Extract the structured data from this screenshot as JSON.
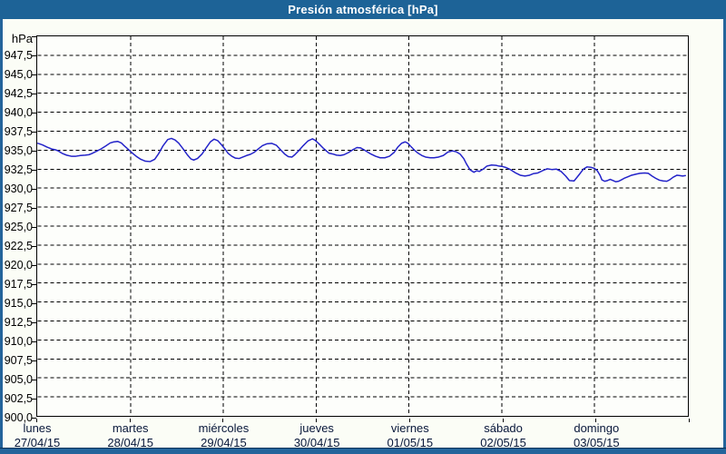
{
  "window": {
    "title": "Presión atmosférica [hPa]"
  },
  "colors": {
    "titlebar_bg": "#1d6397",
    "frame": "#24649b",
    "page_bg": "#fbfdf6",
    "plot_bg": "#fdfefb",
    "plot_border": "#000000",
    "grid": "#000000",
    "line": "#2323c9",
    "x_label_text": "#08173a",
    "y_label_text": "#000000"
  },
  "chart_data": {
    "type": "line",
    "title": "Presión atmosférica [hPa]",
    "unit_label": "hPa",
    "grid": "dashed",
    "legend": "none",
    "y_axis": {
      "min": 900,
      "max": 950,
      "step": 2.5,
      "tick_labels": [
        "947,5",
        "945,0",
        "942,5",
        "940,0",
        "937,5",
        "935,0",
        "932,5",
        "930,0",
        "927,5",
        "925,0",
        "922,5",
        "920,0",
        "917,5",
        "915,0",
        "912,5",
        "910,0",
        "907,5",
        "905,0",
        "902,5",
        "900,0"
      ]
    },
    "x_axis": {
      "days": [
        {
          "name": "lunes",
          "date": "27/04/15"
        },
        {
          "name": "martes",
          "date": "28/04/15"
        },
        {
          "name": "miércoles",
          "date": "29/04/15"
        },
        {
          "name": "jueves",
          "date": "30/04/15"
        },
        {
          "name": "viernes",
          "date": "01/05/15"
        },
        {
          "name": "sábado",
          "date": "02/05/15"
        },
        {
          "name": "domingo",
          "date": "03/05/15"
        }
      ]
    },
    "series": [
      {
        "name": "Presión atmosférica",
        "x_unit": "days_since_monday_00h",
        "y_unit": "hPa",
        "points": [
          [
            0.0,
            935.9
          ],
          [
            0.05,
            935.7
          ],
          [
            0.1,
            935.4
          ],
          [
            0.15,
            935.15
          ],
          [
            0.19,
            935.05
          ],
          [
            0.22,
            934.9
          ],
          [
            0.26,
            934.6
          ],
          [
            0.31,
            934.35
          ],
          [
            0.36,
            934.2
          ],
          [
            0.41,
            934.2
          ],
          [
            0.46,
            934.3
          ],
          [
            0.51,
            934.35
          ],
          [
            0.55,
            934.4
          ],
          [
            0.58,
            934.55
          ],
          [
            0.63,
            934.85
          ],
          [
            0.68,
            935.15
          ],
          [
            0.73,
            935.55
          ],
          [
            0.78,
            935.95
          ],
          [
            0.82,
            936.1
          ],
          [
            0.86,
            936.15
          ],
          [
            0.9,
            935.95
          ],
          [
            0.93,
            935.6
          ],
          [
            0.97,
            935.15
          ],
          [
            1.01,
            934.7
          ],
          [
            1.06,
            934.2
          ],
          [
            1.11,
            933.8
          ],
          [
            1.16,
            933.55
          ],
          [
            1.21,
            933.5
          ],
          [
            1.26,
            933.8
          ],
          [
            1.3,
            934.5
          ],
          [
            1.35,
            935.6
          ],
          [
            1.4,
            936.4
          ],
          [
            1.44,
            936.55
          ],
          [
            1.48,
            936.35
          ],
          [
            1.52,
            935.9
          ],
          [
            1.57,
            935.1
          ],
          [
            1.61,
            934.4
          ],
          [
            1.65,
            933.85
          ],
          [
            1.68,
            933.7
          ],
          [
            1.72,
            933.9
          ],
          [
            1.77,
            934.5
          ],
          [
            1.82,
            935.4
          ],
          [
            1.86,
            936.1
          ],
          [
            1.9,
            936.45
          ],
          [
            1.94,
            936.25
          ],
          [
            1.98,
            935.7
          ],
          [
            2.02,
            935.1
          ],
          [
            2.05,
            934.6
          ],
          [
            2.09,
            934.2
          ],
          [
            2.13,
            933.95
          ],
          [
            2.17,
            933.9
          ],
          [
            2.21,
            934.1
          ],
          [
            2.25,
            934.3
          ],
          [
            2.29,
            934.45
          ],
          [
            2.33,
            934.7
          ],
          [
            2.38,
            935.2
          ],
          [
            2.42,
            935.6
          ],
          [
            2.47,
            935.85
          ],
          [
            2.52,
            935.9
          ],
          [
            2.57,
            935.65
          ],
          [
            2.62,
            935.0
          ],
          [
            2.66,
            934.5
          ],
          [
            2.7,
            934.15
          ],
          [
            2.74,
            934.1
          ],
          [
            2.77,
            934.4
          ],
          [
            2.81,
            934.9
          ],
          [
            2.86,
            935.6
          ],
          [
            2.91,
            936.2
          ],
          [
            2.96,
            936.5
          ],
          [
            2.99,
            936.3
          ],
          [
            3.03,
            935.85
          ],
          [
            3.07,
            935.35
          ],
          [
            3.11,
            934.9
          ],
          [
            3.14,
            934.6
          ],
          [
            3.18,
            934.5
          ],
          [
            3.22,
            934.35
          ],
          [
            3.26,
            934.3
          ],
          [
            3.3,
            934.4
          ],
          [
            3.35,
            934.7
          ],
          [
            3.4,
            935.1
          ],
          [
            3.44,
            935.35
          ],
          [
            3.48,
            935.3
          ],
          [
            3.51,
            935.1
          ],
          [
            3.55,
            934.8
          ],
          [
            3.59,
            934.5
          ],
          [
            3.64,
            934.2
          ],
          [
            3.69,
            934.0
          ],
          [
            3.74,
            934.0
          ],
          [
            3.79,
            934.2
          ],
          [
            3.84,
            934.7
          ],
          [
            3.88,
            935.4
          ],
          [
            3.92,
            935.9
          ],
          [
            3.96,
            936.1
          ],
          [
            3.99,
            935.9
          ],
          [
            4.02,
            935.5
          ],
          [
            4.06,
            935.0
          ],
          [
            4.1,
            934.6
          ],
          [
            4.14,
            934.3
          ],
          [
            4.18,
            934.1
          ],
          [
            4.23,
            934.0
          ],
          [
            4.27,
            934.0
          ],
          [
            4.32,
            934.1
          ],
          [
            4.37,
            934.3
          ],
          [
            4.42,
            934.75
          ],
          [
            4.47,
            934.9
          ],
          [
            4.51,
            934.8
          ],
          [
            4.55,
            934.5
          ],
          [
            4.59,
            933.9
          ],
          [
            4.62,
            933.2
          ],
          [
            4.66,
            932.4
          ],
          [
            4.7,
            932.1
          ],
          [
            4.73,
            932.3
          ],
          [
            4.76,
            932.2
          ],
          [
            4.8,
            932.5
          ],
          [
            4.84,
            932.9
          ],
          [
            4.89,
            933.05
          ],
          [
            4.94,
            933.0
          ],
          [
            4.97,
            932.9
          ],
          [
            5.01,
            932.85
          ],
          [
            5.05,
            932.7
          ],
          [
            5.1,
            932.4
          ],
          [
            5.15,
            932.0
          ],
          [
            5.2,
            931.7
          ],
          [
            5.25,
            931.6
          ],
          [
            5.3,
            931.7
          ],
          [
            5.34,
            931.9
          ],
          [
            5.39,
            932.0
          ],
          [
            5.44,
            932.3
          ],
          [
            5.49,
            932.55
          ],
          [
            5.54,
            932.45
          ],
          [
            5.59,
            932.5
          ],
          [
            5.64,
            932.2
          ],
          [
            5.69,
            931.6
          ],
          [
            5.73,
            931.0
          ],
          [
            5.78,
            930.95
          ],
          [
            5.83,
            931.7
          ],
          [
            5.88,
            932.5
          ],
          [
            5.92,
            932.8
          ],
          [
            5.96,
            932.75
          ],
          [
            6.0,
            932.6
          ],
          [
            6.03,
            932.3
          ],
          [
            6.06,
            931.7
          ],
          [
            6.08,
            931.1
          ],
          [
            6.11,
            930.9
          ],
          [
            6.14,
            931.0
          ],
          [
            6.17,
            931.15
          ],
          [
            6.2,
            931.0
          ],
          [
            6.23,
            930.85
          ],
          [
            6.26,
            930.9
          ],
          [
            6.29,
            931.1
          ],
          [
            6.32,
            931.3
          ],
          [
            6.36,
            931.5
          ],
          [
            6.4,
            931.7
          ],
          [
            6.45,
            931.85
          ],
          [
            6.49,
            931.95
          ],
          [
            6.54,
            932.0
          ],
          [
            6.58,
            931.95
          ],
          [
            6.62,
            931.6
          ],
          [
            6.66,
            931.3
          ],
          [
            6.7,
            931.05
          ],
          [
            6.74,
            930.95
          ],
          [
            6.78,
            930.9
          ],
          [
            6.81,
            931.1
          ],
          [
            6.85,
            931.45
          ],
          [
            6.89,
            931.7
          ],
          [
            6.92,
            931.65
          ],
          [
            6.95,
            931.6
          ],
          [
            6.98,
            931.65
          ]
        ]
      }
    ]
  }
}
